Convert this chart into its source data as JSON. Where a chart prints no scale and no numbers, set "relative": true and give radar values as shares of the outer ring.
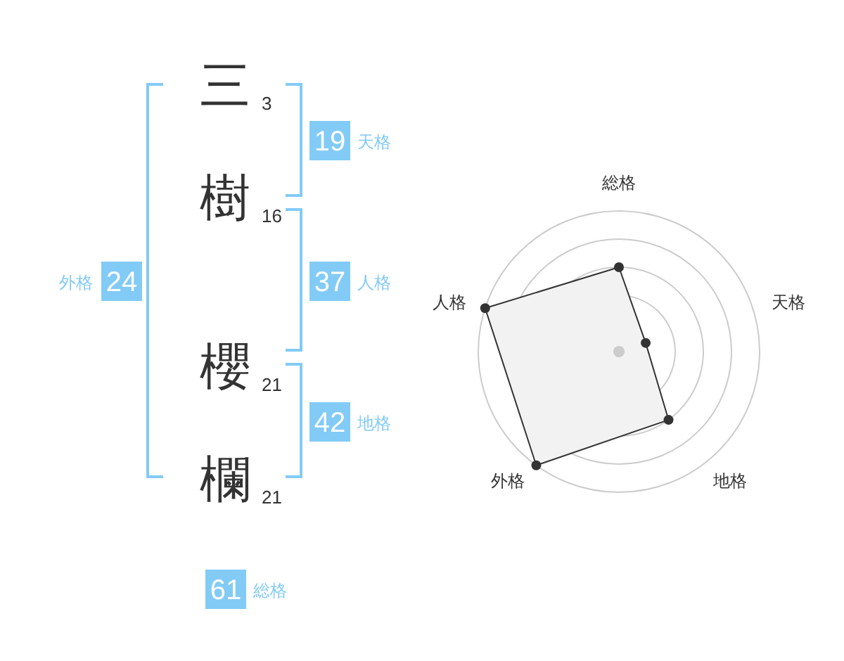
{
  "chart_data": [
    {
      "type": "other",
      "categories": [
        "三",
        "樹",
        "櫻",
        "欄"
      ],
      "values": [
        3,
        16,
        21,
        21
      ],
      "data_labels": true,
      "annotations": [
        "19",
        "天格",
        "37",
        "人格",
        "42",
        "地格",
        "24",
        "外格",
        "61",
        "総格"
      ]
    },
    {
      "type": "radar",
      "categories": [
        "総格",
        "天格",
        "地格",
        "外格",
        "人格"
      ],
      "relative": true,
      "grid": true,
      "marker": "circle",
      "series": [
        {
          "color": "#333333",
          "values": [
            0.6,
            0.2,
            0.6,
            1,
            1
          ]
        }
      ]
    }
  ]
}
